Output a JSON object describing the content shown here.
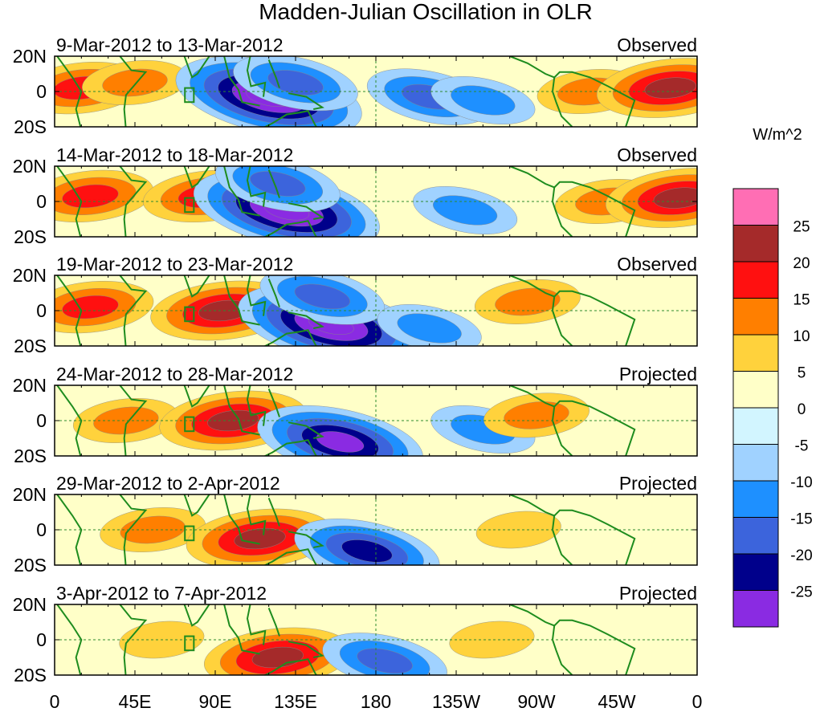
{
  "chart_data": {
    "type": "heatmap",
    "title": "Madden-Julian Oscillation in OLR",
    "units": "W/m^2",
    "x_ticks": [
      "0",
      "45E",
      "90E",
      "135E",
      "180",
      "135W",
      "90W",
      "45W",
      "0"
    ],
    "y_ticks": [
      "20N",
      "0",
      "20S"
    ],
    "colorbar": {
      "levels": [
        "25",
        "20",
        "15",
        "10",
        "5",
        "0",
        "-5",
        "-10",
        "-15",
        "-20",
        "-25"
      ],
      "colors": [
        "#ff6eb4",
        "#a52a2a",
        "#ff1010",
        "#ff7f00",
        "#ffd23c",
        "#ffffc8",
        "#d2f5ff",
        "#a0d2ff",
        "#1e90ff",
        "#3c64dc",
        "#00008b",
        "#8a2be2"
      ]
    },
    "panels": [
      {
        "period": "9-Mar-2012 to 13-Mar-2012",
        "status": "Observed",
        "features": [
          {
            "lon": 15,
            "lat": 2,
            "value": 15
          },
          {
            "lon": 45,
            "lat": 5,
            "value": 10
          },
          {
            "lon": 120,
            "lat": -3,
            "value": -30
          },
          {
            "lon": 135,
            "lat": 5,
            "value": -15
          },
          {
            "lon": 210,
            "lat": -3,
            "value": -15
          },
          {
            "lon": 240,
            "lat": -5,
            "value": -10
          },
          {
            "lon": 300,
            "lat": 0,
            "value": 10
          },
          {
            "lon": 345,
            "lat": 2,
            "value": 20
          }
        ]
      },
      {
        "period": "14-Mar-2012 to 18-Mar-2012",
        "status": "Observed",
        "features": [
          {
            "lon": 20,
            "lat": 3,
            "value": 15
          },
          {
            "lon": 85,
            "lat": 3,
            "value": 15
          },
          {
            "lon": 130,
            "lat": -5,
            "value": -30
          },
          {
            "lon": 125,
            "lat": 10,
            "value": -15
          },
          {
            "lon": 230,
            "lat": -5,
            "value": -10
          },
          {
            "lon": 310,
            "lat": 0,
            "value": 10
          },
          {
            "lon": 350,
            "lat": 2,
            "value": 20
          }
        ]
      },
      {
        "period": "19-Mar-2012 to 23-Mar-2012",
        "status": "Observed",
        "features": [
          {
            "lon": 20,
            "lat": 2,
            "value": 15
          },
          {
            "lon": 95,
            "lat": 0,
            "value": 20
          },
          {
            "lon": 155,
            "lat": -8,
            "value": -30
          },
          {
            "lon": 150,
            "lat": 8,
            "value": -15
          },
          {
            "lon": 210,
            "lat": -10,
            "value": -10
          },
          {
            "lon": 265,
            "lat": 5,
            "value": 10
          }
        ]
      },
      {
        "period": "24-Mar-2012 to 28-Mar-2012",
        "status": "Projected",
        "features": [
          {
            "lon": 40,
            "lat": 0,
            "value": 10
          },
          {
            "lon": 100,
            "lat": 0,
            "value": 20
          },
          {
            "lon": 160,
            "lat": -12,
            "value": -25
          },
          {
            "lon": 240,
            "lat": -5,
            "value": -10
          },
          {
            "lon": 270,
            "lat": 3,
            "value": 10
          }
        ]
      },
      {
        "period": "29-Mar-2012 to 2-Apr-2012",
        "status": "Projected",
        "features": [
          {
            "lon": 55,
            "lat": 0,
            "value": 10
          },
          {
            "lon": 115,
            "lat": -5,
            "value": 20
          },
          {
            "lon": 175,
            "lat": -12,
            "value": -20
          },
          {
            "lon": 260,
            "lat": 0,
            "value": 5
          }
        ]
      },
      {
        "period": "3-Apr-2012 to 7-Apr-2012",
        "status": "Projected",
        "features": [
          {
            "lon": 60,
            "lat": 0,
            "value": 5
          },
          {
            "lon": 125,
            "lat": -10,
            "value": 20
          },
          {
            "lon": 185,
            "lat": -12,
            "value": -15
          },
          {
            "lon": 245,
            "lat": 0,
            "value": 5
          }
        ]
      }
    ]
  }
}
